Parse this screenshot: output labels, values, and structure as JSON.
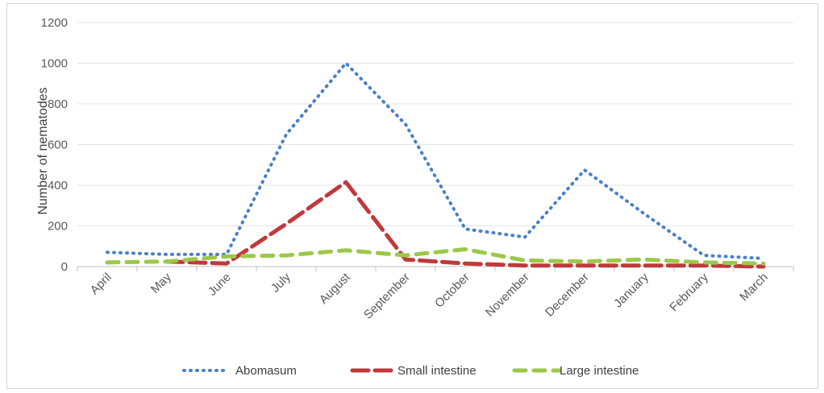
{
  "chart_data": {
    "type": "line",
    "title": "",
    "xlabel": "",
    "ylabel": "Number of nematodes",
    "ylim": [
      0,
      1200
    ],
    "yticks": [
      0,
      200,
      400,
      600,
      800,
      1000,
      1200
    ],
    "grid": true,
    "legend_position": "bottom",
    "categories": [
      "April",
      "May",
      "June",
      "July",
      "August",
      "September",
      "October",
      "November",
      "December",
      "January",
      "February",
      "March"
    ],
    "series": [
      {
        "name": "Abomasum",
        "color": "#4a7fc8",
        "style": "dotted",
        "values": [
          70,
          60,
          60,
          650,
          1000,
          700,
          185,
          145,
          475,
          260,
          55,
          40
        ]
      },
      {
        "name": "Small intestine",
        "color": "#c0393b",
        "style": "long-dash",
        "values": [
          null,
          25,
          15,
          210,
          415,
          35,
          15,
          5,
          5,
          5,
          5,
          0
        ]
      },
      {
        "name": "Large intestine",
        "color": "#9bc84a",
        "style": "dash",
        "values": [
          20,
          25,
          50,
          55,
          80,
          55,
          85,
          30,
          25,
          35,
          20,
          15
        ]
      }
    ]
  }
}
